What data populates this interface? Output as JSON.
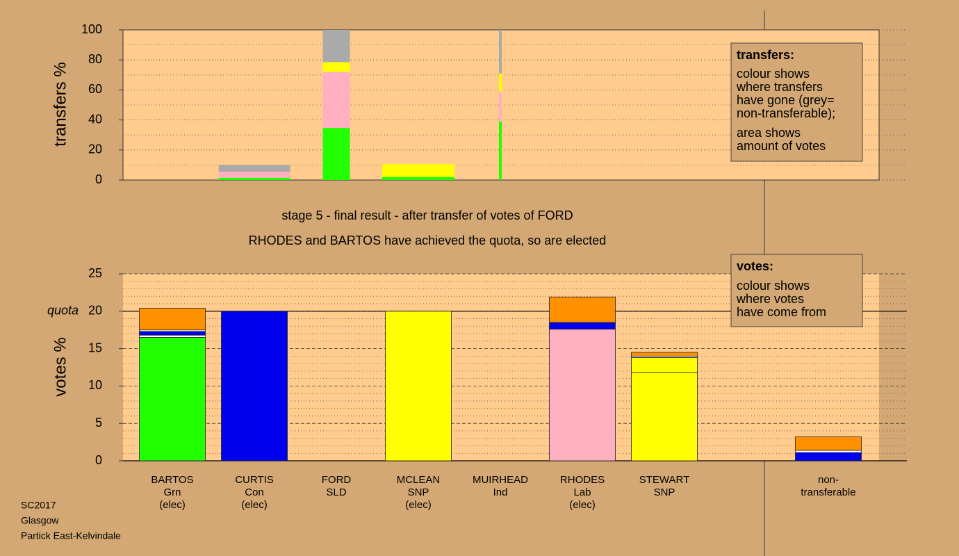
{
  "chart_data": [
    {
      "type": "bar",
      "stacked": true,
      "ylabel": "transfers %",
      "ylim": [
        0,
        100
      ],
      "yticks": [
        0,
        20,
        40,
        60,
        80,
        100
      ],
      "minor_yticks": [
        10,
        30,
        50,
        70,
        90
      ],
      "stacks": [
        [],
        [
          1.5,
          4,
          4.5
        ],
        [
          34.7,
          37.3,
          6.5,
          21.5
        ],
        [
          2,
          8.5
        ],
        [
          39,
          20,
          12,
          29
        ],
        [],
        [],
        [],
        []
      ],
      "colors": [
        [],
        [
          "#22ff00",
          "#ffb0c0",
          "#aaaaaa"
        ],
        [
          "#22ff00",
          "#ffb0c0",
          "#ffff00",
          "#aaaaaa"
        ],
        [
          "#22ff00",
          "#ffff00"
        ],
        [
          "#22ff00",
          "#ffb0c0",
          "#ffff00",
          "#aaaaaa"
        ],
        [],
        [],
        [],
        []
      ],
      "amounts": [
        null,
        1.03,
        0.39,
        1.04,
        0.04,
        null,
        null,
        null,
        null
      ],
      "legend": {
        "title": "transfers:",
        "lines": [
          "colour shows",
          "where transfers",
          "have gone (grey=",
          "non-transferable);",
          "area shows",
          "amount of votes"
        ]
      }
    },
    {
      "type": "bar",
      "stacked": true,
      "ylabel": "votes %",
      "ylim": [
        0,
        25
      ],
      "yticks": [
        0,
        5,
        10,
        15,
        20,
        25
      ],
      "minor_yticks": [
        1,
        2,
        3,
        4,
        6,
        7,
        8,
        9,
        11,
        12,
        13,
        14,
        16,
        17,
        18,
        19,
        21,
        22,
        23,
        24
      ],
      "quota": {
        "value": 20,
        "label": "quota"
      },
      "categories": [
        [
          "BARTOS",
          "Grn",
          "(elec)"
        ],
        [
          "CURTIS",
          "Con",
          "(elec)"
        ],
        [
          "FORD",
          "SLD"
        ],
        [
          "MCLEAN",
          "SNP",
          "(elec)"
        ],
        [
          "MUIRHEAD",
          "Ind"
        ],
        [
          "RHODES",
          "Lab",
          "(elec)"
        ],
        [
          "STEWART",
          "SNP"
        ],
        null,
        [
          "non-",
          "transferable"
        ]
      ],
      "stacks": [
        [
          16.5,
          0.3,
          0.5,
          0.2,
          2.9
        ],
        [
          20
        ],
        [],
        [
          20
        ],
        [],
        [
          17.6,
          0.9,
          3.4
        ],
        [
          11.8,
          2,
          0.2,
          0.5
        ],
        [],
        [
          1.1,
          0.3,
          1.8
        ]
      ],
      "colors": [
        [
          "#22ff00",
          "#ffffff",
          "#0000ee",
          "#ffffff",
          "#ff9000"
        ],
        [
          "#0000ee"
        ],
        [],
        [
          "#ffff00"
        ],
        [],
        [
          "#ffb0c0",
          "#0000ee",
          "#ff9000"
        ],
        [
          "#ffff00",
          "#ffff00",
          "#ffffff",
          "#ff9000"
        ],
        [],
        [
          "#0000ee",
          "#ffffff",
          "#ff9000"
        ]
      ],
      "legend": {
        "title": "votes:",
        "lines": [
          "colour shows",
          "where votes",
          "have come from"
        ]
      }
    }
  ],
  "stage_text": [
    "stage 5 - final result - after transfer of votes of FORD",
    "RHODES and BARTOS have achieved the quota, so are elected"
  ],
  "footer": [
    "SC2017",
    "Glasgow",
    "Partick East-Kelvindale"
  ]
}
